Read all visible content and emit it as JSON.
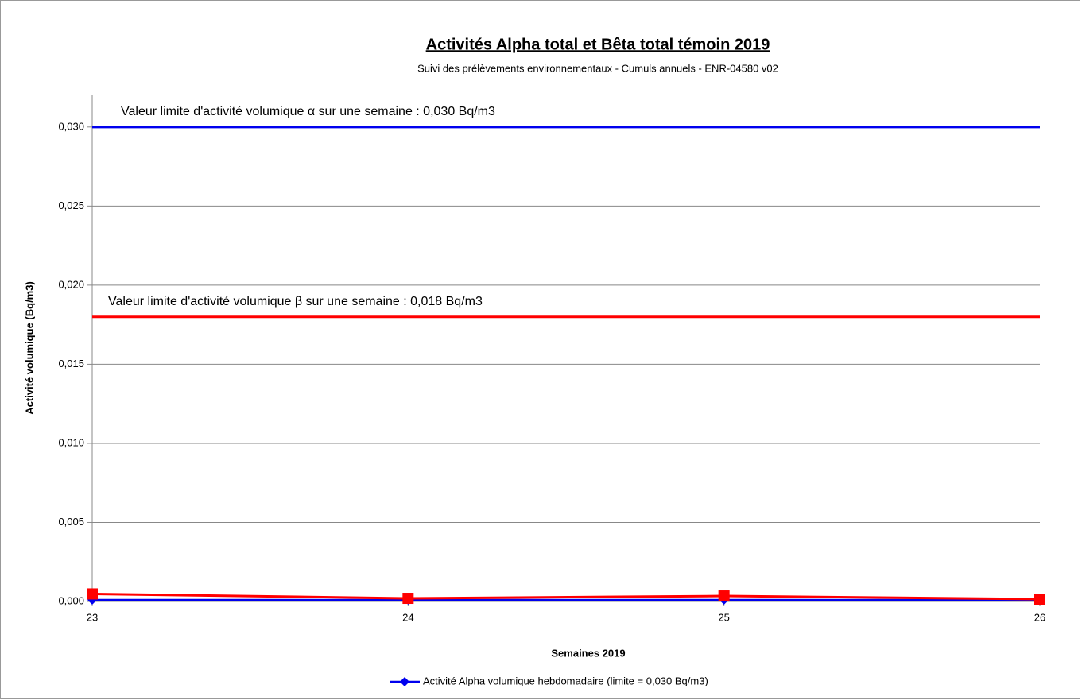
{
  "chart_data": {
    "type": "line",
    "title": "Activités Alpha total et Bêta total témoin 2019",
    "subtitle": "Suivi des prélèvements environnementaux - Cumuls annuels - ENR-04580 v02",
    "x_label": "Semaines 2019",
    "y_label": "Activité volumique (Bq/m3)",
    "x": [
      23,
      24,
      25,
      26
    ],
    "series": [
      {
        "name": "Activité Alpha volumique hebdomadaire (limite = 0,030 Bq/m3)",
        "color": "#0000ee",
        "marker": "diamond",
        "values": [
          0.0001,
          0.0001,
          0.0001,
          0.0001
        ]
      },
      {
        "color": "#ff0000",
        "marker": "square",
        "values": [
          0.00048,
          0.0002,
          0.00035,
          0.00015
        ]
      }
    ],
    "limits": [
      {
        "value": 0.03,
        "color": "#0000ee",
        "label": "Valeur limite d'activité volumique α sur une semaine : 0,030 Bq/m3"
      },
      {
        "value": 0.018,
        "color": "#ff0000",
        "label": "Valeur limite d'activité volumique β sur une semaine : 0,018 Bq/m3"
      }
    ],
    "xlim": [
      23,
      26
    ],
    "xticks": [
      23,
      24,
      25,
      26
    ],
    "ylim": [
      0,
      0.032
    ],
    "yticks": [
      {
        "value": 0,
        "label": "0,000"
      },
      {
        "value": 0.005,
        "label": "0,005"
      },
      {
        "value": 0.01,
        "label": "0,010"
      },
      {
        "value": 0.015,
        "label": "0,015"
      },
      {
        "value": 0.02,
        "label": "0,020"
      },
      {
        "value": 0.025,
        "label": "0,025"
      },
      {
        "value": 0.03,
        "label": "0,030"
      }
    ],
    "grid": true,
    "legend": "bottom"
  }
}
